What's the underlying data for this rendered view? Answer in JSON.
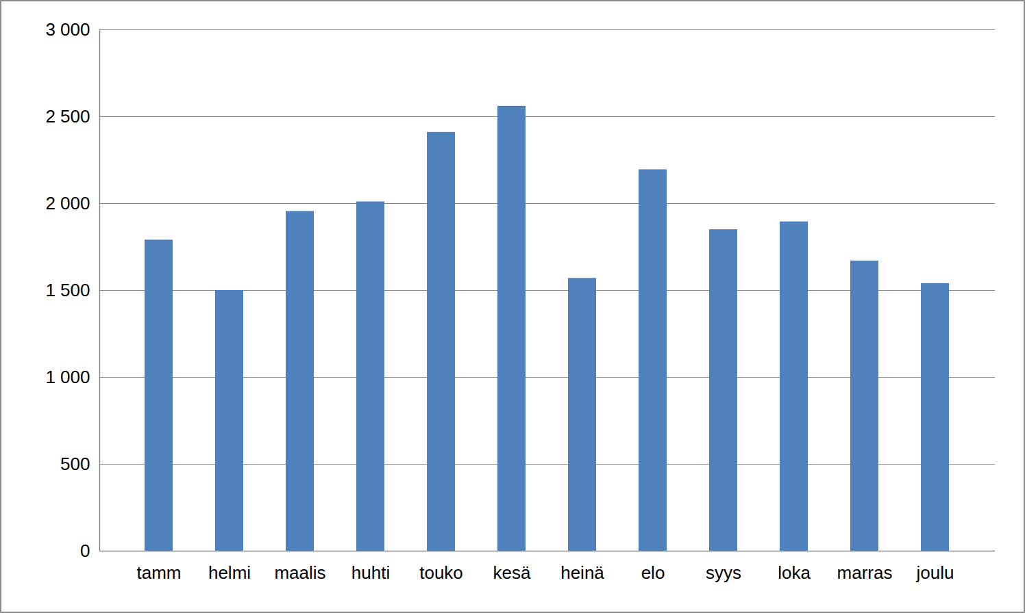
{
  "chart_data": {
    "type": "bar",
    "categories": [
      "tamm",
      "helmi",
      "maalis",
      "huhti",
      "touko",
      "kesä",
      "heinä",
      "elo",
      "syys",
      "loka",
      "marras",
      "joulu"
    ],
    "values": [
      1790,
      1500,
      1955,
      2010,
      2410,
      2560,
      1570,
      2195,
      1850,
      1895,
      1670,
      1540
    ],
    "color": "#4f81bd",
    "ylim": [
      0,
      3000
    ],
    "yticks": [
      0,
      500,
      {
        "value": 1000,
        "label": "1 000"
      },
      {
        "value": 1500,
        "label": "1 500"
      },
      {
        "value": 2000,
        "label": "2 000"
      },
      {
        "value": 2500,
        "label": "2 500"
      },
      {
        "value": 3000,
        "label": "3 000"
      }
    ],
    "grid": true
  }
}
